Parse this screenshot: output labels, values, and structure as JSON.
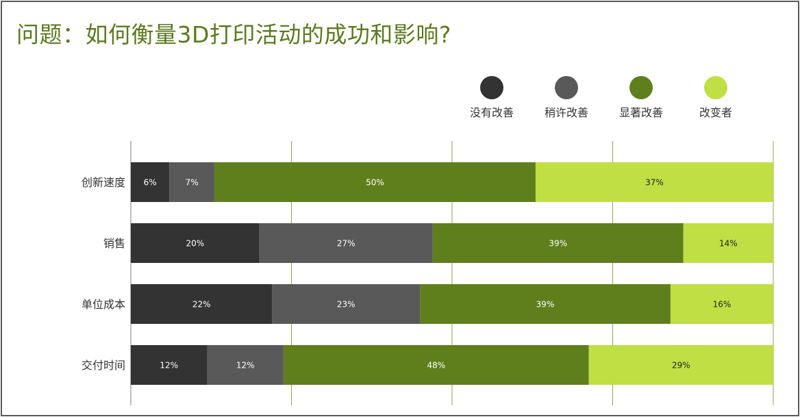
{
  "title": "问题：如何衡量3D打印活动的成功和影响?",
  "chart_data": {
    "type": "bar",
    "orientation": "horizontal",
    "stacked": true,
    "percent_stacked": true,
    "title": "问题：如何衡量3D打印活动的成功和影响?",
    "categories": [
      "创新速度",
      "销售",
      "单位成本",
      "交付时间"
    ],
    "series": [
      {
        "name": "没有改善",
        "color": "#333333",
        "label_color": "#ffffff",
        "values": [
          6,
          20,
          22,
          12
        ]
      },
      {
        "name": "稍许改善",
        "color": "#595959",
        "label_color": "#ffffff",
        "values": [
          7,
          27,
          23,
          12
        ]
      },
      {
        "name": "显著改善",
        "color": "#5f7f1c",
        "label_color": "#ffffff",
        "values": [
          50,
          39,
          39,
          48
        ]
      },
      {
        "name": "改变者",
        "color": "#bfdf44",
        "label_color": "#222222",
        "values": [
          37,
          14,
          16,
          29
        ]
      }
    ],
    "value_suffix": "%",
    "xlim": [
      0,
      100
    ],
    "grid": true,
    "legend": "top-right"
  }
}
